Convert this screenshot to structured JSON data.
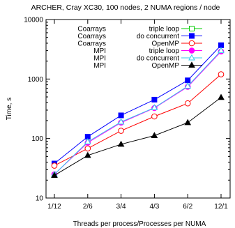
{
  "chart_data": {
    "type": "line",
    "title": "ARCHER, Cray XC30, 100 nodes, 2 NUMA regions / node",
    "xlabel": "Threads per process/Processes per NUMA",
    "ylabel": "Time, s",
    "yscale": "log",
    "ylim": [
      10,
      10000
    ],
    "yticks": [
      10,
      100,
      1000,
      10000
    ],
    "categories": [
      "1/12",
      "2/6",
      "3/4",
      "4/3",
      "6/2",
      "12/1"
    ],
    "grid": false,
    "legend_position": "top-right",
    "series": [
      {
        "name_left": "Coarrays",
        "name_right": "triple loop",
        "color": "#00cc00",
        "marker": "square-open",
        "values": [
          null,
          null,
          null,
          null,
          null,
          null
        ]
      },
      {
        "name_left": "Coarrays",
        "name_right": "do concurrent",
        "color": "#0000ff",
        "marker": "square-filled",
        "values": [
          38,
          107,
          245,
          450,
          950,
          3700
        ]
      },
      {
        "name_left": "Coarrays",
        "name_right": "OpenMP",
        "color": "#ff0000",
        "marker": "circle-open",
        "values": [
          35,
          68,
          135,
          235,
          390,
          1200
        ]
      },
      {
        "name_left": "MPI",
        "name_right": "triple loop",
        "color": "#ff00ff",
        "marker": "circle-filled",
        "values": [
          25,
          85,
          185,
          325,
          740,
          2900
        ]
      },
      {
        "name_left": "MPI",
        "name_right": "do concurrent",
        "color": "#33ccee",
        "marker": "triangle-open",
        "values": [
          25,
          88,
          190,
          330,
          760,
          3000
        ]
      },
      {
        "name_left": "MPI",
        "name_right": "OpenMP",
        "color": "#000000",
        "marker": "triangle-filled",
        "values": [
          24,
          52,
          80,
          112,
          185,
          490
        ]
      }
    ]
  }
}
